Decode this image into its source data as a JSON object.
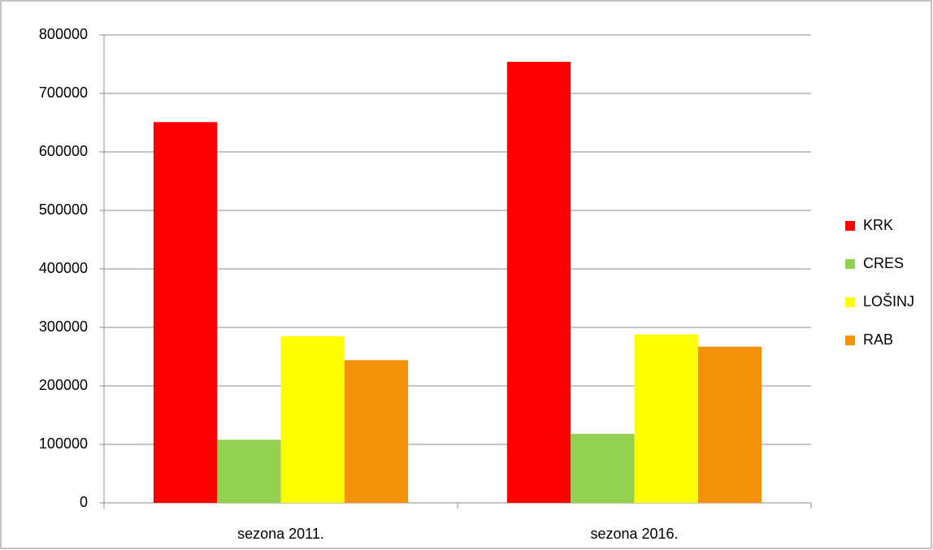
{
  "chart_data": {
    "type": "bar",
    "categories": [
      "sezona 2011.",
      "sezona 2016."
    ],
    "series": [
      {
        "name": "KRK",
        "color": "#ff0000",
        "values": [
          651000,
          754000
        ]
      },
      {
        "name": "CRES",
        "color": "#92d050",
        "values": [
          108000,
          118000
        ]
      },
      {
        "name": "LOŠINJ",
        "color": "#ffff00",
        "values": [
          285000,
          288000
        ]
      },
      {
        "name": "RAB",
        "color": "#f39208",
        "values": [
          244000,
          267000
        ]
      }
    ],
    "ylim": [
      0,
      800000
    ],
    "yticks": [
      0,
      100000,
      200000,
      300000,
      400000,
      500000,
      600000,
      700000,
      800000
    ],
    "grid": true,
    "legend": "right"
  }
}
